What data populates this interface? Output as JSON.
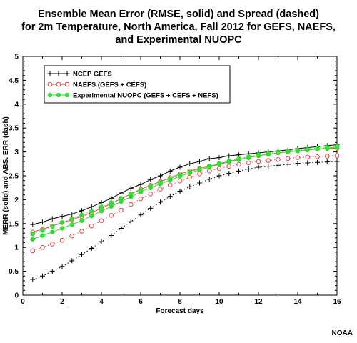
{
  "chart_data": {
    "type": "line",
    "title_lines": [
      "Ensemble Mean Error (RMSE, solid) and Spread (dashed)",
      "for 2m Temperature, North America, Fall 2012 for GEFS, NAEFS,",
      "and Experimental NUOPC"
    ],
    "xlabel": "Forecast days",
    "ylabel": "MERR (solid) and ABS. ERR (dash)",
    "xlim": [
      0,
      16
    ],
    "ylim": [
      0,
      5
    ],
    "x_ticks": [
      0,
      2,
      4,
      6,
      8,
      10,
      12,
      14,
      16
    ],
    "y_ticks": [
      0,
      0.5,
      1,
      1.5,
      2,
      2.5,
      3,
      3.5,
      4,
      4.5,
      5
    ],
    "x_tick_labels": [
      "0",
      "2",
      "4",
      "6",
      "8",
      "10",
      "12",
      "14",
      "16"
    ],
    "y_tick_labels": [
      "0",
      "0.5",
      "1",
      "1.5",
      "2",
      "2.5",
      "3",
      "3.5",
      "4",
      "4.5",
      "5"
    ],
    "grid": false,
    "legend_position": "top-left",
    "x": [
      0.5,
      1,
      1.5,
      2,
      2.5,
      3,
      3.5,
      4,
      4.5,
      5,
      5.5,
      6,
      6.5,
      7,
      7.5,
      8,
      8.5,
      9,
      9.5,
      10,
      10.5,
      11,
      11.5,
      12,
      12.5,
      13,
      13.5,
      14,
      14.5,
      15,
      15.5,
      16
    ],
    "series": [
      {
        "name": "NCEP GEFS",
        "color": "#000000",
        "marker": "plus",
        "solid": [
          1.48,
          1.53,
          1.6,
          1.65,
          1.7,
          1.77,
          1.85,
          1.94,
          2.03,
          2.14,
          2.24,
          2.32,
          2.42,
          2.5,
          2.6,
          2.68,
          2.75,
          2.8,
          2.86,
          2.88,
          2.92,
          2.94,
          2.96,
          2.98,
          3.0,
          3.02,
          3.04,
          3.07,
          3.09,
          3.11,
          3.13,
          3.15
        ],
        "dashed": [
          0.33,
          0.4,
          0.5,
          0.6,
          0.72,
          0.85,
          0.98,
          1.12,
          1.25,
          1.4,
          1.54,
          1.68,
          1.82,
          1.95,
          2.07,
          2.18,
          2.27,
          2.35,
          2.43,
          2.5,
          2.55,
          2.6,
          2.64,
          2.68,
          2.7,
          2.72,
          2.74,
          2.76,
          2.77,
          2.78,
          2.79,
          2.8
        ]
      },
      {
        "name": "NAEFS (GEFS + CEFS)",
        "color": "#e04848",
        "marker": "open-circle",
        "solid": [
          1.32,
          1.38,
          1.45,
          1.52,
          1.58,
          1.65,
          1.73,
          1.82,
          1.92,
          2.02,
          2.12,
          2.22,
          2.3,
          2.38,
          2.46,
          2.54,
          2.6,
          2.65,
          2.7,
          2.75,
          2.8,
          2.84,
          2.88,
          2.92,
          2.95,
          2.98,
          3.0,
          3.02,
          3.04,
          3.06,
          3.07,
          3.08
        ],
        "dashed": [
          0.93,
          1.0,
          1.07,
          1.15,
          1.24,
          1.34,
          1.45,
          1.56,
          1.67,
          1.78,
          1.9,
          2.02,
          2.12,
          2.22,
          2.31,
          2.39,
          2.47,
          2.54,
          2.6,
          2.65,
          2.7,
          2.74,
          2.77,
          2.8,
          2.82,
          2.84,
          2.86,
          2.88,
          2.89,
          2.9,
          2.91,
          2.92
        ]
      },
      {
        "name": "Experimental NUOPC (GEFS + CEFS + NEFS)",
        "color": "#33dd33",
        "marker": "filled-circle",
        "solid": [
          1.17,
          1.25,
          1.32,
          1.4,
          1.48,
          1.56,
          1.66,
          1.76,
          1.86,
          1.96,
          2.06,
          2.16,
          2.25,
          2.33,
          2.41,
          2.49,
          2.56,
          2.62,
          2.68,
          2.74,
          2.79,
          2.84,
          2.88,
          2.92,
          2.95,
          2.98,
          3.0,
          3.02,
          3.04,
          3.06,
          3.08,
          3.1
        ],
        "dashed": [
          1.28,
          1.36,
          1.44,
          1.52,
          1.6,
          1.68,
          1.76,
          1.85,
          1.94,
          2.03,
          2.12,
          2.2,
          2.28,
          2.36,
          2.44,
          2.52,
          2.58,
          2.64,
          2.7,
          2.76,
          2.81,
          2.86,
          2.9,
          2.94,
          2.97,
          3.0,
          3.02,
          3.04,
          3.06,
          3.08,
          3.1,
          3.12
        ]
      }
    ]
  },
  "credit": "NOAA"
}
